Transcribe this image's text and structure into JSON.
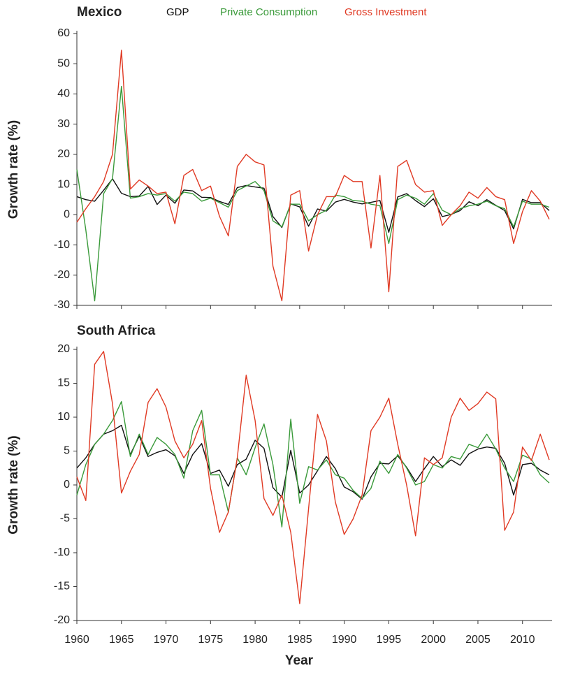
{
  "chart_data": [
    {
      "type": "line",
      "title": "Mexico",
      "ylabel": "Growth rate (%)",
      "x": [
        1960,
        1961,
        1962,
        1963,
        1964,
        1965,
        1966,
        1967,
        1968,
        1969,
        1970,
        1971,
        1972,
        1973,
        1974,
        1975,
        1976,
        1977,
        1978,
        1979,
        1980,
        1981,
        1982,
        1983,
        1984,
        1985,
        1986,
        1987,
        1988,
        1989,
        1990,
        1991,
        1992,
        1993,
        1994,
        1995,
        1996,
        1997,
        1998,
        1999,
        2000,
        2001,
        2002,
        2003,
        2004,
        2005,
        2006,
        2007,
        2008,
        2009,
        2010,
        2011,
        2012,
        2013
      ],
      "series": [
        {
          "name": "GDP",
          "color": "#111111",
          "values": [
            6,
            5,
            4.5,
            8.1,
            11.9,
            7.1,
            6,
            6.2,
            9.4,
            3.4,
            6.5,
            3.8,
            8.2,
            7.9,
            5.8,
            5.7,
            4.4,
            3.4,
            9,
            9.7,
            9.2,
            8.8,
            -0.6,
            -4.2,
            3.6,
            2.6,
            -3.8,
            1.9,
            1.2,
            4.2,
            5.1,
            4.2,
            3.6,
            4.1,
            4.7,
            -5.8,
            5.9,
            7,
            4.7,
            2.7,
            5.3,
            -0.6,
            0.1,
            1.4,
            4.3,
            3,
            5,
            3.1,
            1.4,
            -4.7,
            5.1,
            4,
            4,
            1.4
          ]
        },
        {
          "name": "Private Consumption",
          "color": "#3a9a3a",
          "values": [
            15,
            -5,
            -28.5,
            7,
            12,
            42.5,
            5.5,
            6,
            7,
            6.5,
            7,
            4.5,
            7.5,
            7,
            4.5,
            5.5,
            4,
            2.5,
            8,
            9.5,
            11,
            8,
            -2,
            -4,
            3.5,
            3.5,
            -2,
            0,
            1.5,
            6.5,
            6,
            4.7,
            4.5,
            3.5,
            3,
            -9.5,
            5,
            6.5,
            5.5,
            3.5,
            7,
            1.5,
            0,
            2,
            3,
            3.5,
            4.5,
            3,
            2,
            -4,
            4.5,
            3.5,
            3.5,
            2.5
          ]
        },
        {
          "name": "Gross Investment",
          "color": "#e03a24",
          "values": [
            -2.5,
            2,
            6,
            11,
            20,
            54.5,
            8.5,
            11.5,
            9.5,
            7,
            7.5,
            -3,
            13,
            15,
            8,
            9.5,
            -0.5,
            -7,
            16,
            20,
            17.5,
            16.5,
            -17,
            -28.5,
            6.5,
            8,
            -12,
            0,
            6,
            6,
            13,
            11,
            11,
            -11,
            13,
            -25.5,
            16,
            18,
            10,
            7.5,
            8,
            -3.5,
            0,
            3,
            7.5,
            5.5,
            9,
            6,
            5,
            -9.5,
            1,
            8,
            4.5,
            -1.5
          ]
        }
      ],
      "xlim": [
        1960,
        2013
      ],
      "xticks": [
        1960,
        1965,
        1970,
        1975,
        1980,
        1985,
        1990,
        1995,
        2000,
        2005,
        2010
      ],
      "ylim": [
        -30,
        60
      ],
      "yticks": [
        -30,
        -20,
        -10,
        0,
        10,
        20,
        30,
        40,
        50,
        60
      ],
      "legend": "top"
    },
    {
      "type": "line",
      "title": "South Africa",
      "ylabel": "Growth rate (%)",
      "xlabel": "Year",
      "x": [
        1960,
        1961,
        1962,
        1963,
        1964,
        1965,
        1966,
        1967,
        1968,
        1969,
        1970,
        1971,
        1972,
        1973,
        1974,
        1975,
        1976,
        1977,
        1978,
        1979,
        1980,
        1981,
        1982,
        1983,
        1984,
        1985,
        1986,
        1987,
        1988,
        1989,
        1990,
        1991,
        1992,
        1993,
        1994,
        1995,
        1996,
        1997,
        1998,
        1999,
        2000,
        2001,
        2002,
        2003,
        2004,
        2005,
        2006,
        2007,
        2008,
        2009,
        2010,
        2011,
        2012,
        2013
      ],
      "series": [
        {
          "color": "#111111",
          "values": [
            2.5,
            4,
            6,
            7.5,
            8,
            8.8,
            4.5,
            7.2,
            4.2,
            4.8,
            5.2,
            4.3,
            1.7,
            4.5,
            6.1,
            1.7,
            2.2,
            -0.2,
            3,
            3.8,
            6.6,
            5.4,
            -0.4,
            -1.8,
            5.1,
            -1.2,
            0,
            2.1,
            4.2,
            2.4,
            -0.3,
            -1,
            -2.1,
            1.2,
            3.2,
            3.1,
            4.3,
            2.6,
            0.5,
            2.4,
            4.2,
            2.7,
            3.7,
            2.9,
            4.6,
            5.3,
            5.6,
            5.4,
            3.2,
            -1.5,
            3,
            3.2,
            2.2,
            1.5
          ]
        },
        {
          "color": "#3a9a3a",
          "values": [
            -1.5,
            3,
            6,
            7.5,
            9.5,
            12.3,
            4.2,
            7.5,
            4.5,
            7,
            6,
            4.5,
            1,
            8,
            11,
            1.5,
            1.5,
            -4,
            4,
            1.5,
            5.5,
            9,
            3,
            -6.2,
            9.7,
            -2.7,
            2.7,
            2.2,
            3.7,
            1.5,
            1,
            -0.8,
            -2,
            -0.5,
            3.5,
            1.7,
            4.5,
            2.5,
            0,
            0.5,
            3,
            2.5,
            4.2,
            3.8,
            6,
            5.5,
            7.5,
            5.3,
            2.5,
            0.5,
            4.4,
            3.8,
            1.5,
            0.3
          ]
        },
        {
          "color": "#e03a24",
          "values": [
            1.2,
            -2.3,
            17.8,
            19.7,
            12,
            -1.2,
            2,
            4.5,
            12.2,
            14.2,
            11.5,
            6.5,
            4,
            6,
            9.5,
            -0.5,
            -7,
            -4,
            4,
            16.2,
            9.5,
            -2,
            -4.5,
            -1.5,
            -7,
            -17.5,
            -3.5,
            10.4,
            6.5,
            -2.5,
            -7.3,
            -5,
            -1.5,
            8,
            10,
            12.8,
            6,
            0,
            -7.5,
            4,
            3,
            4,
            10,
            12.8,
            11,
            12,
            13.7,
            12.7,
            -6.7,
            -4,
            5.6,
            3.6,
            7.5,
            3.7
          ]
        }
      ],
      "xlim": [
        1960,
        2013
      ],
      "xticks": [
        1960,
        1965,
        1970,
        1975,
        1980,
        1985,
        1990,
        1995,
        2000,
        2005,
        2010
      ],
      "ylim": [
        -20,
        20
      ],
      "yticks": [
        -20,
        -15,
        -10,
        -5,
        0,
        5,
        10,
        15,
        20
      ]
    }
  ]
}
